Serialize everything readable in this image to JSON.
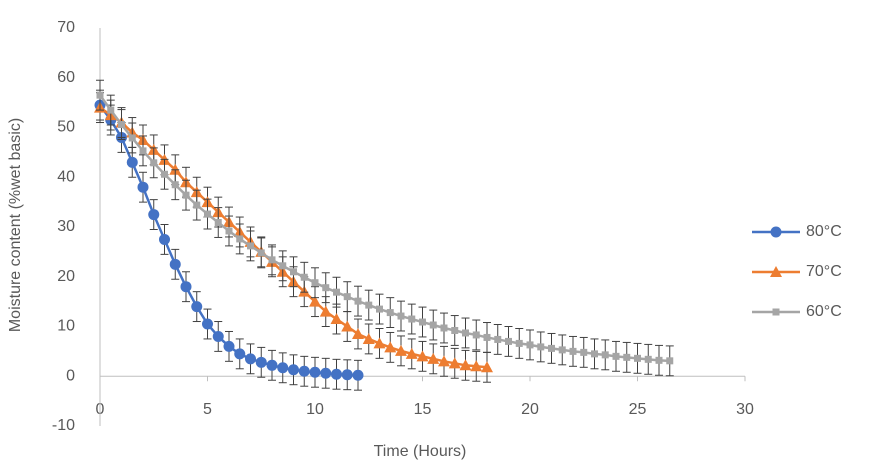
{
  "chart_data": {
    "type": "line",
    "x_label": "Time (Hours)",
    "y_label": "Moisture content (%wet basic)",
    "xlim": [
      0,
      30
    ],
    "xticks": [
      0,
      5,
      10,
      15,
      20,
      25,
      30
    ],
    "ylim": [
      -10,
      70
    ],
    "yticks": [
      -10,
      0,
      10,
      20,
      30,
      40,
      50,
      60,
      70
    ],
    "grid": false,
    "legend": "right",
    "series": [
      {
        "name": "80°C",
        "color": "#4472c4",
        "marker": "circle",
        "error": 3,
        "x": [
          0,
          0.5,
          1,
          1.5,
          2,
          2.5,
          3,
          3.5,
          4,
          4.5,
          5,
          5.5,
          6,
          6.5,
          7,
          7.5,
          8,
          8.5,
          9,
          9.5,
          10,
          10.5,
          11,
          11.5,
          12
        ],
        "values": [
          54.5,
          51.5,
          48,
          43,
          38,
          32.5,
          27.5,
          22.5,
          18,
          14,
          10.5,
          8,
          6,
          4.5,
          3.5,
          2.8,
          2.2,
          1.7,
          1.3,
          1,
          0.8,
          0.6,
          0.4,
          0.3,
          0.2
        ]
      },
      {
        "name": "70°C",
        "color": "#ed7d31",
        "marker": "triangle",
        "error": 3,
        "x": [
          0,
          0.5,
          1,
          1.5,
          2,
          2.5,
          3,
          3.5,
          4,
          4.5,
          5,
          5.5,
          6,
          6.5,
          7,
          7.5,
          8,
          8.5,
          9,
          9.5,
          10,
          10.5,
          11,
          11.5,
          12,
          12.5,
          13,
          13.5,
          14,
          14.5,
          15,
          15.5,
          16,
          16.5,
          17,
          17.5,
          18
        ],
        "values": [
          54,
          52.5,
          51,
          49,
          47.5,
          45.5,
          43.5,
          41.5,
          39,
          37,
          35,
          33,
          31,
          29,
          27,
          25,
          23,
          21,
          19,
          17,
          15,
          13,
          11.5,
          10,
          8.5,
          7.5,
          6.6,
          5.8,
          5.1,
          4.5,
          4,
          3.5,
          3,
          2.6,
          2.2,
          2,
          1.8
        ]
      },
      {
        "name": "60°C",
        "color": "#a5a5a5",
        "marker": "square",
        "error": 3,
        "x": [
          0,
          0.5,
          1,
          1.5,
          2,
          2.5,
          3,
          3.5,
          4,
          4.5,
          5,
          5.5,
          6,
          6.5,
          7,
          7.5,
          8,
          8.5,
          9,
          9.5,
          10,
          10.5,
          11,
          11.5,
          12,
          12.5,
          13,
          13.5,
          14,
          14.5,
          15,
          15.5,
          16,
          16.5,
          17,
          17.5,
          18,
          18.5,
          19,
          19.5,
          20,
          20.5,
          21,
          21.5,
          22,
          22.5,
          23,
          23.5,
          24,
          24.5,
          25,
          25.5,
          26,
          26.5
        ],
        "values": [
          56.5,
          53.5,
          50.6,
          47.9,
          45.3,
          42.9,
          40.6,
          38.5,
          36.4,
          34.4,
          32.6,
          30.9,
          29.2,
          27.6,
          26.2,
          24.8,
          23.4,
          22.2,
          21,
          19.9,
          18.8,
          17.8,
          16.9,
          16,
          15.1,
          14.3,
          13.5,
          12.8,
          12.1,
          11.5,
          10.9,
          10.3,
          9.7,
          9.2,
          8.7,
          8.3,
          7.8,
          7.4,
          7,
          6.6,
          6.3,
          5.9,
          5.6,
          5.3,
          5,
          4.8,
          4.5,
          4.3,
          4,
          3.8,
          3.6,
          3.4,
          3.2,
          3.1
        ]
      }
    ]
  }
}
